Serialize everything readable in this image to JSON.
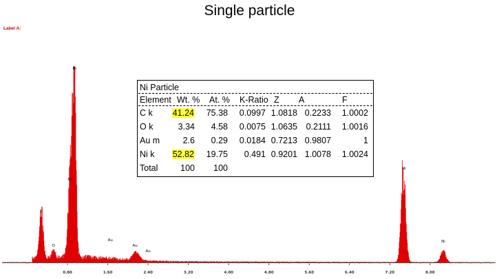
{
  "title": "Single particle",
  "label_a": "Label A:",
  "table": {
    "title": "Ni Particle",
    "headers": [
      "Element",
      "Wt. %",
      "At. %",
      "K-Ratio",
      "Z",
      "A",
      "F"
    ],
    "rows": [
      [
        "C k",
        "41.24",
        "75.38",
        "0.0997",
        "1.0818",
        "0.2233",
        "1.0002"
      ],
      [
        "O k",
        "3.34",
        "4.58",
        "0.0075",
        "1.0635",
        "0.2111",
        "1.0016"
      ],
      [
        "Au m",
        "2.6",
        "0.29",
        "0.0184",
        "0.7213",
        "0.9807",
        "1"
      ],
      [
        "Ni k",
        "52.82",
        "19.75",
        "0.491",
        "0.9201",
        "1.0078",
        "1.0024"
      ],
      [
        "Total",
        "100",
        "100",
        "",
        "",
        "",
        ""
      ]
    ],
    "highlighted": [
      "41.24",
      "52.82"
    ],
    "highlight_color": "#ffff33"
  },
  "chart_data": {
    "type": "area",
    "xlabel": "",
    "ylabel": "",
    "xlim": [
      -0.5,
      9.3
    ],
    "ylim": [
      0,
      285
    ],
    "x_ticks": [
      "0.80",
      "1.60",
      "2.40",
      "3.20",
      "4.00",
      "4.80",
      "5.60",
      "6.40",
      "7.20",
      "8.00"
    ],
    "x_tick_values": [
      0.8,
      1.6,
      2.4,
      3.2,
      4.0,
      4.8,
      5.6,
      6.4,
      7.2,
      8.0
    ],
    "series_color": "#e00000",
    "peaks": [
      {
        "label": "C",
        "x": 0.28,
        "height": 68,
        "width": 0.035
      },
      {
        "label": "O",
        "x": 0.52,
        "height": 12,
        "width": 0.03
      },
      {
        "label": "Ni",
        "x": 0.85,
        "height": 112,
        "width": 0.04
      },
      {
        "label": "Ni",
        "x": 0.93,
        "height": 272,
        "width": 0.035
      },
      {
        "label": "Au",
        "x": 2.12,
        "height": 8,
        "width": 0.05
      },
      {
        "label": "Au",
        "x": 2.2,
        "height": 7,
        "width": 0.05
      },
      {
        "label": "Ni",
        "x": 7.47,
        "height": 130,
        "width": 0.045
      },
      {
        "label": "Ni",
        "x": 8.26,
        "height": 16,
        "width": 0.05
      }
    ],
    "peak_labels": [
      {
        "text": "C",
        "x": 0.28,
        "y": 70
      },
      {
        "text": "O",
        "x": 0.52,
        "y": 20
      },
      {
        "text": "Ni",
        "x": 0.84,
        "y": 116
      },
      {
        "text": "Ni",
        "x": 0.94,
        "y": 277
      },
      {
        "text": "Au",
        "x": 1.65,
        "y": 28
      },
      {
        "text": "Au",
        "x": 2.14,
        "y": 20
      },
      {
        "text": "Au",
        "x": 2.4,
        "y": 12
      },
      {
        "text": "Ni",
        "x": 7.48,
        "y": 132
      },
      {
        "text": "Ni",
        "x": 8.26,
        "y": 26
      }
    ]
  }
}
